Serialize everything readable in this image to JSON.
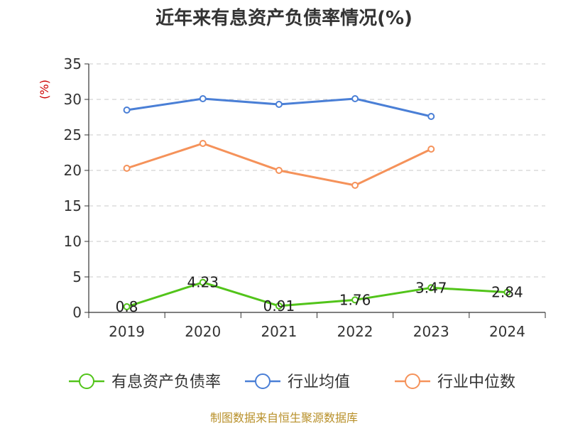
{
  "chart_data": {
    "type": "line",
    "title": "近年来有息资产负债率情况(%)",
    "ylabel": "(%)",
    "categories": [
      "2019",
      "2020",
      "2021",
      "2022",
      "2023",
      "2024"
    ],
    "ylim": [
      0,
      35
    ],
    "yticks": [
      0,
      5,
      10,
      15,
      20,
      25,
      30,
      35
    ],
    "grid": true,
    "legend_position": "bottom",
    "series": [
      {
        "name": "有息资产负债率",
        "color": "#52c41a",
        "values": [
          0.8,
          4.23,
          0.91,
          1.76,
          3.47,
          2.84
        ],
        "labels": [
          "0.8",
          "4.23",
          "0.91",
          "1.76",
          "3.47",
          "2.84"
        ]
      },
      {
        "name": "行业均值",
        "color": "#4a7fd6",
        "values": [
          28.5,
          30.1,
          29.3,
          30.1,
          27.6,
          null
        ]
      },
      {
        "name": "行业中位数",
        "color": "#f5925a",
        "values": [
          20.3,
          23.8,
          20.0,
          17.9,
          23.0,
          null
        ]
      }
    ]
  },
  "footer": {
    "source": "制图数据来自恒生聚源数据库"
  }
}
